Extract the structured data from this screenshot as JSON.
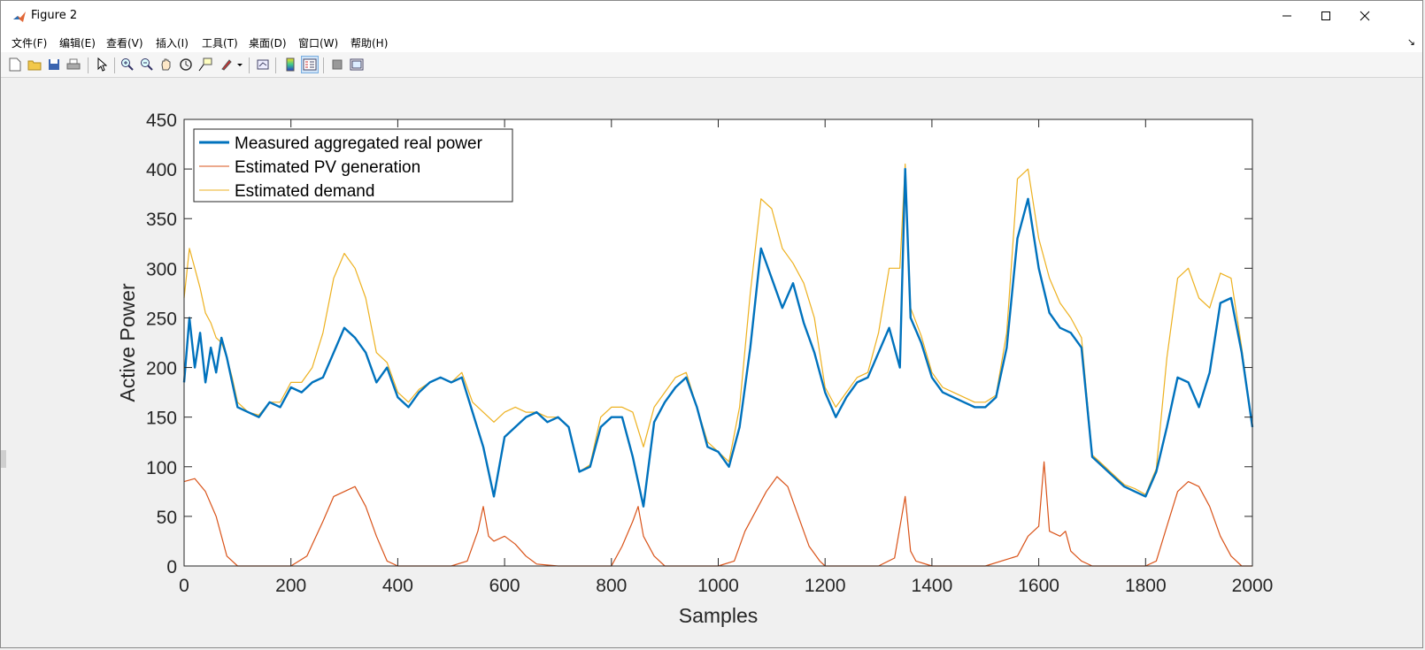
{
  "window": {
    "title": "Figure 2"
  },
  "menu": [
    {
      "key": "file",
      "label": "文件(F)"
    },
    {
      "key": "edit",
      "label": "编辑(E)"
    },
    {
      "key": "view",
      "label": "查看(V)"
    },
    {
      "key": "insert",
      "label": "插入(I)"
    },
    {
      "key": "tools",
      "label": "工具(T)"
    },
    {
      "key": "desktop",
      "label": "桌面(D)"
    },
    {
      "key": "window",
      "label": "窗口(W)"
    },
    {
      "key": "help",
      "label": "帮助(H)"
    }
  ],
  "toolbar": [
    {
      "icon": "new-figure-icon"
    },
    {
      "icon": "open-file-icon"
    },
    {
      "icon": "save-icon"
    },
    {
      "icon": "print-icon"
    },
    {
      "icon": "edit-plot-arrow-icon"
    },
    {
      "icon": "zoom-in-icon"
    },
    {
      "icon": "zoom-out-icon"
    },
    {
      "icon": "pan-hand-icon"
    },
    {
      "icon": "rotate-3d-icon"
    },
    {
      "icon": "data-cursor-icon"
    },
    {
      "icon": "brush-icon"
    },
    {
      "icon": "dropdown-arrow-icon"
    },
    {
      "icon": "link-plot-icon"
    },
    {
      "icon": "colorbar-icon"
    },
    {
      "icon": "legend-icon"
    },
    {
      "icon": "hide-plot-tools-icon"
    },
    {
      "icon": "show-plot-tools-icon"
    }
  ],
  "chart_data": {
    "type": "line",
    "title": "",
    "xlabel": "Samples",
    "ylabel": "Active Power",
    "xlim": [
      0,
      2000
    ],
    "ylim": [
      0,
      450
    ],
    "xticks": [
      0,
      200,
      400,
      600,
      800,
      1000,
      1200,
      1400,
      1600,
      1800,
      2000
    ],
    "yticks": [
      0,
      50,
      100,
      150,
      200,
      250,
      300,
      350,
      400,
      450
    ],
    "legend_position": "top-left",
    "grid": false,
    "series": [
      {
        "name": "Measured aggregated real power",
        "color": "#0072BD",
        "x": [
          0,
          10,
          20,
          30,
          40,
          50,
          60,
          70,
          80,
          90,
          100,
          120,
          140,
          160,
          180,
          200,
          220,
          240,
          260,
          280,
          300,
          320,
          340,
          360,
          380,
          400,
          420,
          440,
          460,
          480,
          500,
          520,
          540,
          560,
          580,
          600,
          620,
          640,
          660,
          680,
          700,
          720,
          740,
          760,
          780,
          800,
          820,
          840,
          860,
          880,
          900,
          920,
          940,
          960,
          980,
          1000,
          1020,
          1040,
          1060,
          1080,
          1100,
          1120,
          1140,
          1160,
          1180,
          1200,
          1220,
          1240,
          1260,
          1280,
          1300,
          1320,
          1340,
          1350,
          1360,
          1380,
          1400,
          1420,
          1440,
          1460,
          1480,
          1500,
          1520,
          1540,
          1560,
          1580,
          1600,
          1620,
          1640,
          1660,
          1680,
          1700,
          1720,
          1740,
          1760,
          1780,
          1800,
          1820,
          1840,
          1860,
          1880,
          1900,
          1920,
          1940,
          1960,
          1980,
          2000
        ],
        "y": [
          185,
          250,
          200,
          235,
          185,
          220,
          195,
          230,
          210,
          185,
          160,
          155,
          150,
          165,
          160,
          180,
          175,
          185,
          190,
          215,
          240,
          230,
          215,
          185,
          200,
          170,
          160,
          175,
          185,
          190,
          185,
          190,
          155,
          120,
          70,
          130,
          140,
          150,
          155,
          145,
          150,
          140,
          95,
          100,
          140,
          150,
          150,
          110,
          60,
          145,
          165,
          180,
          190,
          160,
          120,
          115,
          100,
          140,
          220,
          320,
          290,
          260,
          285,
          245,
          215,
          175,
          150,
          170,
          185,
          190,
          215,
          240,
          200,
          400,
          250,
          225,
          190,
          175,
          170,
          165,
          160,
          160,
          170,
          220,
          330,
          370,
          300,
          255,
          240,
          235,
          220,
          110,
          100,
          90,
          80,
          75,
          70,
          95,
          140,
          190,
          185,
          160,
          195,
          265,
          270,
          215,
          140
        ]
      },
      {
        "name": "Estimated PV generation",
        "color": "#D95319",
        "x": [
          0,
          20,
          40,
          60,
          80,
          100,
          200,
          230,
          260,
          280,
          300,
          320,
          340,
          360,
          380,
          400,
          500,
          530,
          550,
          560,
          570,
          580,
          600,
          620,
          640,
          660,
          700,
          800,
          820,
          840,
          850,
          860,
          880,
          900,
          1000,
          1030,
          1050,
          1070,
          1090,
          1110,
          1130,
          1150,
          1170,
          1190,
          1200,
          1300,
          1330,
          1350,
          1360,
          1370,
          1400,
          1500,
          1560,
          1580,
          1600,
          1610,
          1620,
          1640,
          1650,
          1660,
          1680,
          1700,
          1800,
          1820,
          1840,
          1860,
          1880,
          1900,
          1920,
          1940,
          1960,
          1980,
          2000
        ],
        "y": [
          85,
          88,
          75,
          50,
          10,
          0,
          0,
          10,
          45,
          70,
          75,
          80,
          60,
          30,
          5,
          0,
          0,
          5,
          35,
          60,
          30,
          25,
          30,
          22,
          10,
          2,
          0,
          0,
          20,
          45,
          60,
          30,
          10,
          0,
          0,
          5,
          35,
          55,
          75,
          90,
          80,
          50,
          20,
          5,
          0,
          0,
          8,
          70,
          15,
          5,
          0,
          0,
          10,
          30,
          40,
          105,
          35,
          30,
          35,
          15,
          5,
          0,
          0,
          5,
          40,
          75,
          85,
          80,
          60,
          30,
          10,
          0,
          0
        ]
      },
      {
        "name": "Estimated demand",
        "color": "#EDB120",
        "x": [
          0,
          10,
          20,
          30,
          40,
          50,
          60,
          70,
          80,
          90,
          100,
          120,
          140,
          160,
          180,
          200,
          220,
          240,
          260,
          280,
          300,
          320,
          340,
          360,
          380,
          400,
          420,
          440,
          460,
          480,
          500,
          520,
          540,
          560,
          580,
          600,
          620,
          640,
          660,
          680,
          700,
          720,
          740,
          760,
          780,
          800,
          820,
          840,
          860,
          880,
          900,
          920,
          940,
          960,
          980,
          1000,
          1020,
          1040,
          1060,
          1080,
          1100,
          1120,
          1140,
          1160,
          1180,
          1200,
          1220,
          1240,
          1260,
          1280,
          1300,
          1320,
          1340,
          1350,
          1360,
          1380,
          1400,
          1420,
          1440,
          1460,
          1480,
          1500,
          1520,
          1540,
          1560,
          1580,
          1600,
          1620,
          1640,
          1660,
          1680,
          1700,
          1720,
          1740,
          1760,
          1780,
          1800,
          1820,
          1840,
          1860,
          1880,
          1900,
          1920,
          1940,
          1960,
          1980,
          2000
        ],
        "y": [
          270,
          320,
          300,
          280,
          255,
          245,
          230,
          225,
          210,
          190,
          165,
          155,
          152,
          165,
          165,
          185,
          185,
          200,
          235,
          290,
          315,
          300,
          270,
          215,
          205,
          175,
          165,
          178,
          185,
          190,
          185,
          195,
          165,
          155,
          145,
          155,
          160,
          155,
          155,
          150,
          150,
          140,
          95,
          102,
          150,
          160,
          160,
          155,
          120,
          160,
          175,
          190,
          195,
          160,
          125,
          115,
          105,
          160,
          275,
          370,
          360,
          320,
          305,
          285,
          250,
          180,
          160,
          175,
          190,
          195,
          235,
          300,
          300,
          405,
          260,
          232,
          195,
          180,
          175,
          170,
          165,
          165,
          172,
          235,
          390,
          400,
          330,
          290,
          265,
          250,
          230,
          112,
          102,
          92,
          82,
          78,
          72,
          98,
          210,
          290,
          300,
          270,
          260,
          295,
          290,
          220,
          140
        ]
      }
    ]
  }
}
